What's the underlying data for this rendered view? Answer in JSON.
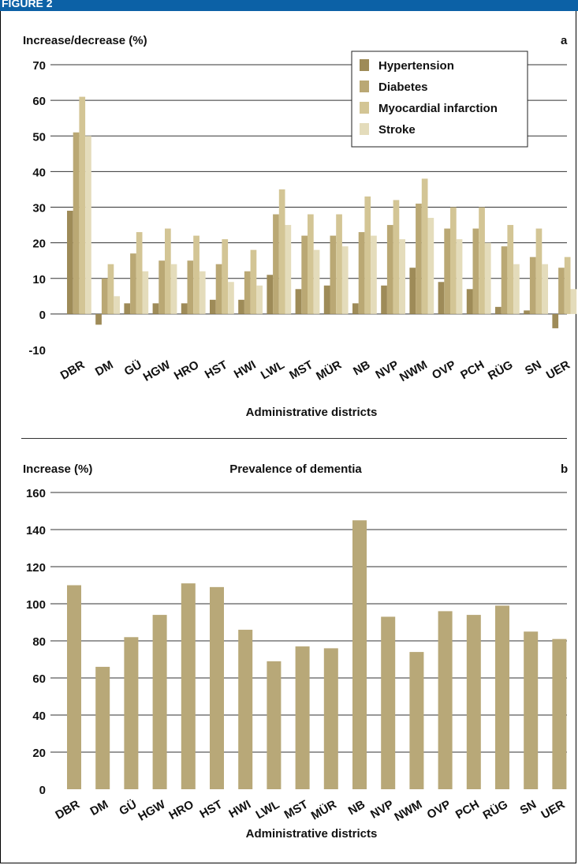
{
  "figure": {
    "label": "FIGURE 2"
  },
  "chart_data": [
    {
      "type": "bar",
      "panel": "a",
      "ylabel": "Increase/decrease (%)",
      "xlabel": "Administrative districts",
      "ylim": [
        -10,
        70
      ],
      "yticks": [
        -10,
        0,
        10,
        20,
        30,
        40,
        50,
        60,
        70
      ],
      "grid": true,
      "legend_position": "top-right",
      "categories": [
        "DBR",
        "DM",
        "GÜ",
        "HGW",
        "HRO",
        "HST",
        "HWI",
        "LWL",
        "MST",
        "MÜR",
        "NB",
        "NVP",
        "NWM",
        "OVP",
        "PCH",
        "RÜG",
        "SN",
        "UER"
      ],
      "series": [
        {
          "name": "Hypertension",
          "color": "#9e8b58",
          "values": [
            29,
            -3,
            3,
            3,
            3,
            4,
            4,
            11,
            7,
            8,
            3,
            8,
            13,
            9,
            7,
            2,
            1,
            -4
          ]
        },
        {
          "name": "Diabetes",
          "color": "#baa874",
          "values": [
            51,
            10,
            17,
            15,
            15,
            14,
            12,
            28,
            22,
            22,
            23,
            25,
            31,
            24,
            24,
            19,
            16,
            13
          ]
        },
        {
          "name": "Myocardial infarction",
          "color": "#d3c595",
          "values": [
            61,
            14,
            23,
            24,
            22,
            21,
            18,
            35,
            28,
            28,
            33,
            32,
            38,
            30,
            30,
            25,
            24,
            16
          ]
        },
        {
          "name": "Stroke",
          "color": "#e4dcbb",
          "values": [
            50,
            5,
            12,
            14,
            12,
            9,
            8,
            25,
            18,
            19,
            22,
            21,
            27,
            21,
            20,
            14,
            14,
            7
          ]
        }
      ]
    },
    {
      "type": "bar",
      "panel": "b",
      "title": "Prevalence of dementia",
      "ylabel": "Increase (%)",
      "xlabel": "Administrative districts",
      "ylim": [
        0,
        160
      ],
      "yticks": [
        0,
        20,
        40,
        60,
        80,
        100,
        120,
        140,
        160
      ],
      "grid": true,
      "categories": [
        "DBR",
        "DM",
        "GÜ",
        "HGW",
        "HRO",
        "HST",
        "HWI",
        "LWL",
        "MST",
        "MÜR",
        "NB",
        "NVP",
        "NWM",
        "OVP",
        "PCH",
        "RÜG",
        "SN",
        "UER"
      ],
      "series": [
        {
          "color": "#b8a878",
          "values": [
            110,
            66,
            82,
            94,
            111,
            109,
            86,
            69,
            77,
            76,
            145,
            93,
            74,
            96,
            94,
            99,
            85,
            81
          ]
        }
      ]
    }
  ]
}
